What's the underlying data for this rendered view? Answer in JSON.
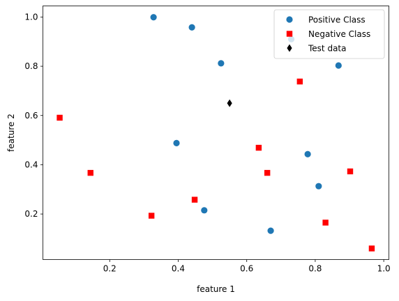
{
  "chart_data": {
    "type": "scatter",
    "title": "",
    "xlabel": "feature 1",
    "ylabel": "feature 2",
    "xlim": [
      0.005,
      1.015
    ],
    "ylim": [
      0.015,
      1.045
    ],
    "xticks": [
      0.2,
      0.4,
      0.6,
      0.8,
      1.0
    ],
    "yticks": [
      0.2,
      0.4,
      0.6,
      0.8,
      1.0
    ],
    "xtick_labels": [
      "0.2",
      "0.4",
      "0.6",
      "0.8",
      "1.0"
    ],
    "ytick_labels": [
      "0.2",
      "0.4",
      "0.6",
      "0.8",
      "1.0"
    ],
    "grid": false,
    "legend_position": "top-right",
    "series": [
      {
        "name": "Positive Class",
        "marker": "circle",
        "color": "#1f77b4",
        "points": [
          [
            0.328,
            0.999
          ],
          [
            0.44,
            0.958
          ],
          [
            0.525,
            0.812
          ],
          [
            0.868,
            0.803
          ],
          [
            0.395,
            0.488
          ],
          [
            0.778,
            0.443
          ],
          [
            0.81,
            0.313
          ],
          [
            0.476,
            0.215
          ],
          [
            0.67,
            0.132
          ],
          [
            0.73,
            0.91
          ]
        ]
      },
      {
        "name": "Negative Class",
        "marker": "square",
        "color": "#ff0000",
        "points": [
          [
            0.054,
            0.591
          ],
          [
            0.144,
            0.367
          ],
          [
            0.322,
            0.193
          ],
          [
            0.448,
            0.258
          ],
          [
            0.635,
            0.469
          ],
          [
            0.66,
            0.367
          ],
          [
            0.755,
            0.738
          ],
          [
            0.902,
            0.373
          ],
          [
            0.83,
            0.165
          ],
          [
            0.965,
            0.06
          ]
        ]
      },
      {
        "name": "Test data",
        "marker": "diamond",
        "color": "#000000",
        "points": [
          [
            0.55,
            0.65
          ]
        ]
      }
    ]
  }
}
